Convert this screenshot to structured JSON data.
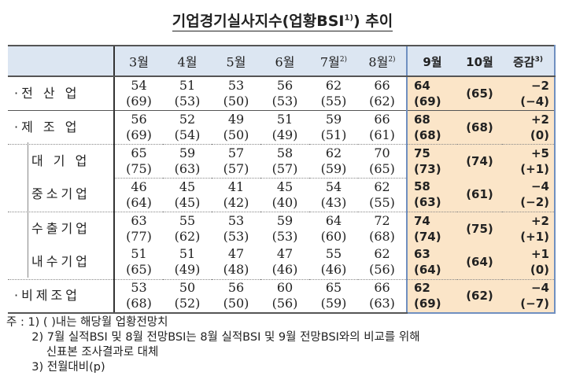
{
  "title": {
    "text": "기업경기실사지수(업황BSI",
    "sup": "1)",
    "tail": ") 추이"
  },
  "header": [
    {
      "label": "3월",
      "sup": ""
    },
    {
      "label": "4월",
      "sup": ""
    },
    {
      "label": "5월",
      "sup": ""
    },
    {
      "label": "6월",
      "sup": ""
    },
    {
      "label": "7월",
      "sup": "2)"
    },
    {
      "label": "8월",
      "sup": "2)"
    },
    {
      "label": "9월",
      "sup": ""
    },
    {
      "label": "10월",
      "sup": ""
    },
    {
      "label": "증감",
      "sup": "3)"
    }
  ],
  "rows": [
    {
      "label": "·전 산 업",
      "vals": [
        [
          "54",
          "(69)"
        ],
        [
          "51",
          "(53)"
        ],
        [
          "53",
          "(50)"
        ],
        [
          "56",
          "(53)"
        ],
        [
          "62",
          "(55)"
        ],
        [
          "66",
          "(62)"
        ],
        [
          "64",
          "(69)"
        ],
        [
          "",
          "(65)"
        ],
        [
          "−2",
          "(−4)"
        ]
      ]
    },
    {
      "label": "·제 조 업",
      "vals": [
        [
          "56",
          "(69)"
        ],
        [
          "52",
          "(54)"
        ],
        [
          "49",
          "(50)"
        ],
        [
          "51",
          "(49)"
        ],
        [
          "59",
          "(51)"
        ],
        [
          "66",
          "(61)"
        ],
        [
          "68",
          "(68)"
        ],
        [
          "",
          "(68)"
        ],
        [
          "+2",
          "(0)"
        ]
      ]
    },
    {
      "label": "대 기 업",
      "vals": [
        [
          "65",
          "(75)"
        ],
        [
          "59",
          "(63)"
        ],
        [
          "57",
          "(57)"
        ],
        [
          "58",
          "(57)"
        ],
        [
          "62",
          "(59)"
        ],
        [
          "70",
          "(65)"
        ],
        [
          "75",
          "(73)"
        ],
        [
          "",
          "(74)"
        ],
        [
          "+5",
          "(+1)"
        ]
      ]
    },
    {
      "label": "중소기업",
      "vals": [
        [
          "46",
          "(64)"
        ],
        [
          "45",
          "(45)"
        ],
        [
          "41",
          "(42)"
        ],
        [
          "45",
          "(40)"
        ],
        [
          "54",
          "(43)"
        ],
        [
          "62",
          "(55)"
        ],
        [
          "58",
          "(63)"
        ],
        [
          "",
          "(61)"
        ],
        [
          "−4",
          "(−2)"
        ]
      ]
    },
    {
      "label": "수출기업",
      "vals": [
        [
          "63",
          "(77)"
        ],
        [
          "55",
          "(62)"
        ],
        [
          "53",
          "(53)"
        ],
        [
          "59",
          "(53)"
        ],
        [
          "64",
          "(60)"
        ],
        [
          "72",
          "(68)"
        ],
        [
          "74",
          "(74)"
        ],
        [
          "",
          "(75)"
        ],
        [
          "+2",
          "(+1)"
        ]
      ]
    },
    {
      "label": "내수기업",
      "vals": [
        [
          "51",
          "(65)"
        ],
        [
          "51",
          "(49)"
        ],
        [
          "47",
          "(48)"
        ],
        [
          "47",
          "(46)"
        ],
        [
          "55",
          "(46)"
        ],
        [
          "62",
          "(56)"
        ],
        [
          "63",
          "(64)"
        ],
        [
          "",
          "(64)"
        ],
        [
          "+1",
          "(0)"
        ]
      ]
    },
    {
      "label": "·비제조업",
      "vals": [
        [
          "53",
          "(68)"
        ],
        [
          "50",
          "(52)"
        ],
        [
          "56",
          "(50)"
        ],
        [
          "60",
          "(56)"
        ],
        [
          "65",
          "(59)"
        ],
        [
          "66",
          "(63)"
        ],
        [
          "62",
          "(69)"
        ],
        [
          "",
          "(62)"
        ],
        [
          "−4",
          "(−7)"
        ]
      ]
    }
  ],
  "notes": [
    "주 : 1) ( )내는 해당월 업황전망치",
    "       2) 7월 실적BSI 및 8월 전망BSI는 8월 실적BSI 및 9월 전망BSI와의 비교를 위해",
    "           신표본 조사결과로 대체",
    "       3) 전월대비(p)"
  ],
  "colors": {
    "header_bg": "#dce6f2",
    "highlight_bg": "#fbe5c8",
    "highlight_border": "#6f8fc0"
  }
}
